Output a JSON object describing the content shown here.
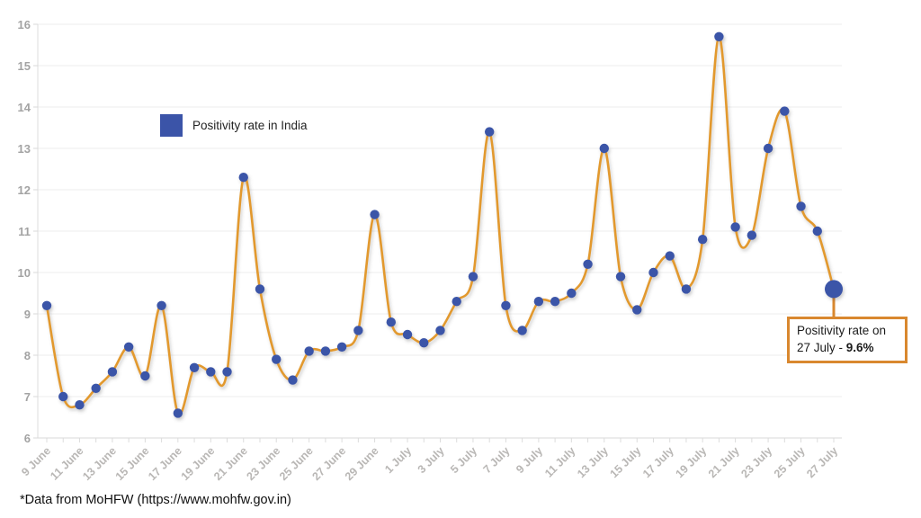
{
  "page": {
    "background": "#ffffff"
  },
  "legend": {
    "label": "Positivity rate in India",
    "swatch_color": "#3B54A8"
  },
  "annotation": {
    "line1": "Positivity rate on",
    "line2_prefix": "27 July - ",
    "line2_bold": "9.6%",
    "border_color": "#D9882F"
  },
  "footer": {
    "text": "*Data from MoHFW (https://www.mohfw.gov.in)"
  },
  "chart_data": {
    "type": "line",
    "title": "",
    "xlabel": "",
    "ylabel": "",
    "ylim": [
      6,
      16
    ],
    "y_ticks": [
      6,
      7,
      8,
      9,
      10,
      11,
      12,
      13,
      14,
      15,
      16
    ],
    "grid": "horizontal",
    "legend_position": "top-left-inside",
    "line_color": "#E2992F",
    "marker_color": "#3B54A8",
    "highlight_last_point": true,
    "x": [
      "9 June",
      "10 June",
      "11 June",
      "12 June",
      "13 June",
      "14 June",
      "15 June",
      "16 June",
      "17 June",
      "18 June",
      "19 June",
      "20 June",
      "21 June",
      "22 June",
      "23 June",
      "24 June",
      "25 June",
      "26 June",
      "27 June",
      "28 June",
      "29 June",
      "30 June",
      "1 July",
      "2 July",
      "3 July",
      "4 July",
      "5 July",
      "6 July",
      "7 July",
      "8 July",
      "9 July",
      "10 July",
      "11 July",
      "12 July",
      "13 July",
      "14 July",
      "15 July",
      "16 July",
      "17 July",
      "18 July",
      "19 July",
      "20 July",
      "21 July",
      "22 July",
      "23 July",
      "24 July",
      "25 July",
      "26 July",
      "27 July"
    ],
    "x_tick_labels": [
      "9 June",
      "11 June",
      "13 June",
      "15 June",
      "17 June",
      "19 June",
      "21 June",
      "23 June",
      "25 June",
      "27 June",
      "29 June",
      "1 July",
      "3 July",
      "5 July",
      "7 July",
      "9 July",
      "11 July",
      "13 July",
      "15 July",
      "17 July",
      "19 July",
      "21 July",
      "23 July",
      "25 July",
      "27 July"
    ],
    "series": [
      {
        "name": "Positivity rate in India",
        "values": [
          9.2,
          7.0,
          6.8,
          7.2,
          7.6,
          8.2,
          7.5,
          9.2,
          6.6,
          7.7,
          7.6,
          7.6,
          12.3,
          9.6,
          7.9,
          7.4,
          8.1,
          8.1,
          8.2,
          8.6,
          11.4,
          8.8,
          8.5,
          8.3,
          8.6,
          9.3,
          9.9,
          13.4,
          9.2,
          8.6,
          9.3,
          9.3,
          9.5,
          10.2,
          13.0,
          9.9,
          9.1,
          10.0,
          10.4,
          9.6,
          10.8,
          15.7,
          11.1,
          10.9,
          13.0,
          13.9,
          11.6,
          11.0,
          9.6
        ]
      }
    ]
  }
}
